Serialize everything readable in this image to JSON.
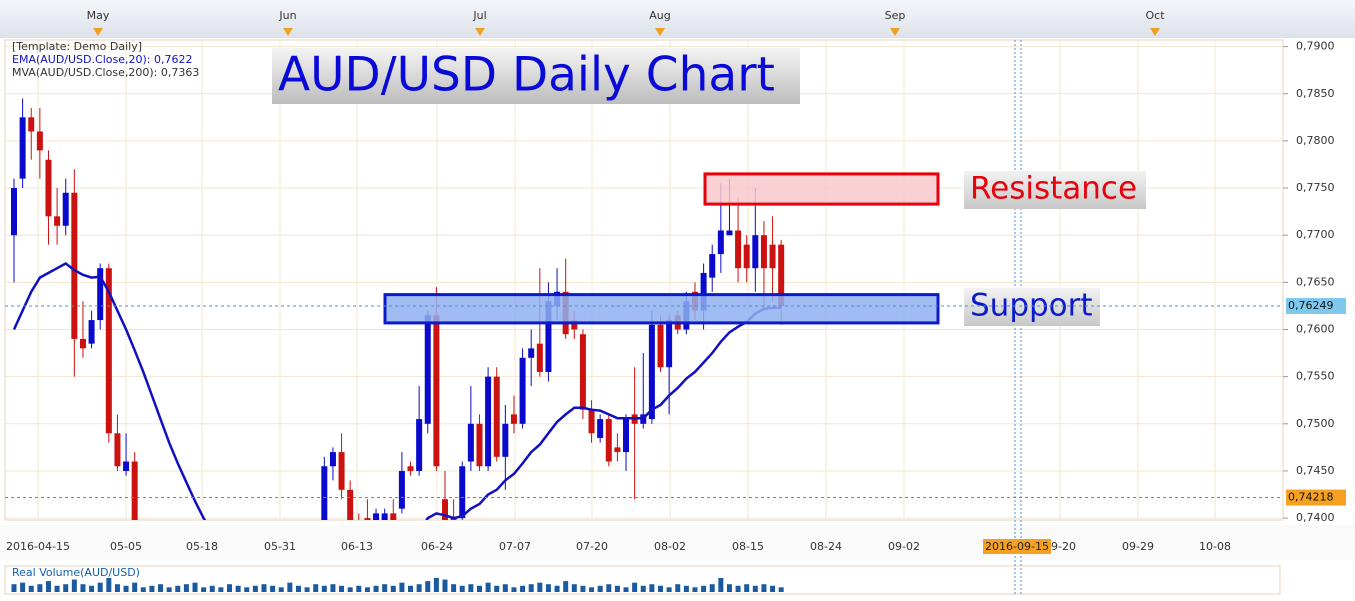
{
  "chart_data": {
    "type": "candlestick",
    "title": "AUD/USD Daily Chart",
    "legend_lines": [
      "[Template: Demo Daily]",
      "EMA(AUD/USD.Close,20): 0,7622",
      "MVA(AUD/USD.Close,200): 0,7363"
    ],
    "months": [
      "May",
      "Jun",
      "Jul",
      "Aug",
      "Sep",
      "Oct"
    ],
    "x_labels": [
      "2016-04-15",
      "05-05",
      "05-18",
      "05-31",
      "06-13",
      "06-24",
      "07-07",
      "07-20",
      "08-02",
      "08-15",
      "08-24",
      "09-02",
      "09-20",
      "09-29",
      "10-08"
    ],
    "x_highlight": "2016-09-15",
    "up_color": "#0a0acc",
    "down_color": "#cc1111",
    "ema_color": "#1010c0",
    "open": [
      0.77,
      0.776,
      0.7825,
      0.781,
      0.778,
      0.772,
      0.771,
      0.7745,
      0.759,
      0.7585,
      0.761,
      0.7665,
      0.749,
      0.745,
      0.746,
      null,
      null,
      null,
      null,
      null,
      null,
      null,
      null,
      null,
      null,
      null,
      null,
      null,
      null,
      null,
      null,
      null,
      null,
      null,
      null,
      null,
      0.7395,
      0.7455,
      0.747,
      0.743,
      0.7395,
      0.74,
      0.739,
      0.7395,
      0.7405,
      0.741,
      0.7455,
      0.745,
      0.75,
      0.7615,
      0.742,
      0.74,
      0.74,
      0.746,
      0.75,
      0.7455,
      0.755,
      0.7465,
      0.751,
      0.75,
      0.757,
      0.7585,
      0.7555,
      0.7625,
      0.764,
      0.761,
      0.7595,
      0.7515,
      0.7485,
      0.7505,
      0.7475,
      0.747,
      0.751,
      0.75,
      0.7505,
      0.7605,
      0.756,
      0.7615,
      0.76,
      0.764,
      0.762,
      0.7655,
      0.768,
      0.77,
      0.7705,
      0.769,
      0.7665,
      0.77,
      0.769,
      0.769
    ],
    "high": [
      0.776,
      0.7845,
      0.7835,
      0.7835,
      0.779,
      0.775,
      0.776,
      0.777,
      0.763,
      0.762,
      0.767,
      0.767,
      0.751,
      0.749,
      0.747,
      null,
      null,
      null,
      null,
      null,
      null,
      null,
      null,
      null,
      null,
      null,
      null,
      null,
      null,
      null,
      null,
      null,
      null,
      null,
      null,
      null,
      0.7465,
      0.7475,
      0.749,
      0.744,
      0.7405,
      0.742,
      0.741,
      0.741,
      0.742,
      0.747,
      0.746,
      0.754,
      0.762,
      0.7645,
      0.745,
      0.742,
      0.746,
      0.754,
      0.751,
      0.756,
      0.756,
      0.752,
      0.753,
      0.758,
      0.76,
      0.7665,
      0.765,
      0.7665,
      0.7675,
      0.762,
      0.76,
      0.7525,
      0.751,
      0.751,
      0.749,
      0.751,
      0.756,
      0.7575,
      0.762,
      0.7615,
      0.7615,
      0.762,
      0.764,
      0.765,
      0.767,
      0.769,
      0.7755,
      0.776,
      0.774,
      0.77,
      0.775,
      0.7715,
      0.772,
      0.7695
    ],
    "low": [
      0.765,
      0.775,
      0.778,
      0.776,
      0.769,
      0.769,
      0.77,
      0.755,
      0.757,
      0.758,
      0.76,
      0.748,
      0.745,
      0.7445,
      0.738,
      null,
      null,
      null,
      null,
      null,
      null,
      null,
      null,
      null,
      null,
      null,
      null,
      null,
      null,
      null,
      null,
      null,
      null,
      null,
      null,
      null,
      0.738,
      0.744,
      0.742,
      0.738,
      0.738,
      0.7385,
      0.738,
      0.7385,
      0.739,
      0.7405,
      0.7445,
      0.7445,
      0.749,
      0.745,
      0.738,
      0.7385,
      0.7395,
      0.745,
      0.745,
      0.745,
      0.746,
      0.743,
      0.749,
      0.7495,
      0.754,
      0.755,
      0.7545,
      0.761,
      0.759,
      0.759,
      0.7505,
      0.748,
      0.748,
      0.7455,
      0.746,
      0.745,
      0.742,
      0.7495,
      0.75,
      0.7555,
      0.751,
      0.7595,
      0.7595,
      0.761,
      0.76,
      0.764,
      0.766,
      0.77,
      0.765,
      0.765,
      0.764,
      0.762,
      0.763,
      0.7605
    ],
    "close": [
      0.775,
      0.7825,
      0.781,
      0.779,
      0.772,
      0.771,
      0.7745,
      0.759,
      0.758,
      0.761,
      0.7665,
      0.749,
      0.7455,
      0.746,
      0.7395,
      null,
      null,
      null,
      null,
      null,
      null,
      null,
      null,
      null,
      null,
      null,
      null,
      null,
      null,
      null,
      null,
      null,
      null,
      null,
      null,
      null,
      0.7455,
      0.747,
      0.743,
      0.7395,
      0.739,
      0.739,
      0.7405,
      0.7405,
      0.7395,
      0.745,
      0.745,
      0.7505,
      0.7615,
      0.7455,
      0.7395,
      0.7395,
      0.7455,
      0.75,
      0.7455,
      0.755,
      0.7465,
      0.75,
      0.75,
      0.757,
      0.758,
      0.7555,
      0.763,
      0.764,
      0.7595,
      0.76,
      0.7515,
      0.749,
      0.7505,
      0.746,
      0.747,
      0.7505,
      0.75,
      0.751,
      0.7605,
      0.756,
      0.761,
      0.76,
      0.763,
      0.762,
      0.766,
      0.768,
      0.7705,
      0.7705,
      0.7665,
      0.7665,
      0.77,
      0.7665,
      0.7665,
      0.7625
    ],
    "ema": [
      0.76,
      0.762,
      0.764,
      0.7655,
      0.766,
      0.7665,
      0.767,
      0.7663,
      0.7658,
      0.7655,
      0.7656,
      0.764,
      0.762,
      0.76,
      0.7578,
      0.7555,
      0.753,
      0.7505,
      0.748,
      0.7458,
      0.7438,
      0.7418,
      0.74,
      0.7385,
      null,
      null,
      null,
      null,
      null,
      null,
      null,
      null,
      null,
      null,
      null,
      null,
      null,
      null,
      null,
      null,
      null,
      null,
      null,
      null,
      null,
      null,
      null,
      0.7385,
      0.74,
      0.7405,
      0.7403,
      0.74,
      0.7402,
      0.741,
      0.7415,
      0.7425,
      0.743,
      0.744,
      0.7447,
      0.7458,
      0.747,
      0.7478,
      0.749,
      0.7502,
      0.751,
      0.7517,
      0.7517,
      0.7515,
      0.7514,
      0.751,
      0.7506,
      0.7506,
      0.7506,
      0.7506,
      0.7515,
      0.752,
      0.753,
      0.7538,
      0.7548,
      0.7555,
      0.7565,
      0.7575,
      0.7587,
      0.7597,
      0.7603,
      0.7608,
      0.7617,
      0.7622,
      0.7623,
      0.7623
    ],
    "ylim": [
      0.7398,
      0.7907
    ],
    "yticks": [
      {
        "value": 0.74,
        "label": "0,7400"
      },
      {
        "value": 0.745,
        "label": "0,7450"
      },
      {
        "value": 0.75,
        "label": "0,7500"
      },
      {
        "value": 0.755,
        "label": "0,7550"
      },
      {
        "value": 0.76,
        "label": "0,7600"
      },
      {
        "value": 0.765,
        "label": "0,7650"
      },
      {
        "value": 0.77,
        "label": "0,7700"
      },
      {
        "value": 0.775,
        "label": "0,7750"
      },
      {
        "value": 0.78,
        "label": "0,7800"
      },
      {
        "value": 0.785,
        "label": "0,7850"
      },
      {
        "value": 0.79,
        "label": "0,7900"
      }
    ],
    "price_markers": [
      {
        "value": 0.76249,
        "label": "0,76249",
        "color": "#7ec8ee"
      },
      {
        "value": 0.74218,
        "label": "0,74218",
        "color": "#f5a020"
      }
    ],
    "zones": [
      {
        "label": "Resistance",
        "from": 0.7733,
        "to": 0.7765,
        "color": "#e8000a",
        "fill": "#f8c8cc"
      },
      {
        "label": "Support",
        "from": 0.7607,
        "to": 0.7637,
        "color": "#0a1acc",
        "fill": "#8fb0f0"
      }
    ],
    "volume_label": "Real Volume(AUD/USD)",
    "volume": [
      5,
      6,
      4,
      5,
      7,
      4,
      5,
      8,
      5,
      4,
      6,
      9,
      5,
      4,
      6,
      3,
      4,
      5,
      3,
      4,
      5,
      6,
      3,
      4,
      3,
      5,
      4,
      3,
      4,
      5,
      4,
      3,
      6,
      4,
      3,
      5,
      4,
      5,
      4,
      3,
      4,
      3,
      4,
      5,
      4,
      6,
      4,
      5,
      7,
      9,
      8,
      5,
      4,
      5,
      4,
      6,
      4,
      5,
      3,
      4,
      5,
      6,
      5,
      4,
      7,
      5,
      4,
      3,
      4,
      5,
      4,
      3,
      6,
      4,
      5,
      4,
      3,
      5,
      4,
      3,
      4,
      5,
      9,
      5,
      4,
      5,
      4,
      5,
      4,
      3
    ]
  }
}
